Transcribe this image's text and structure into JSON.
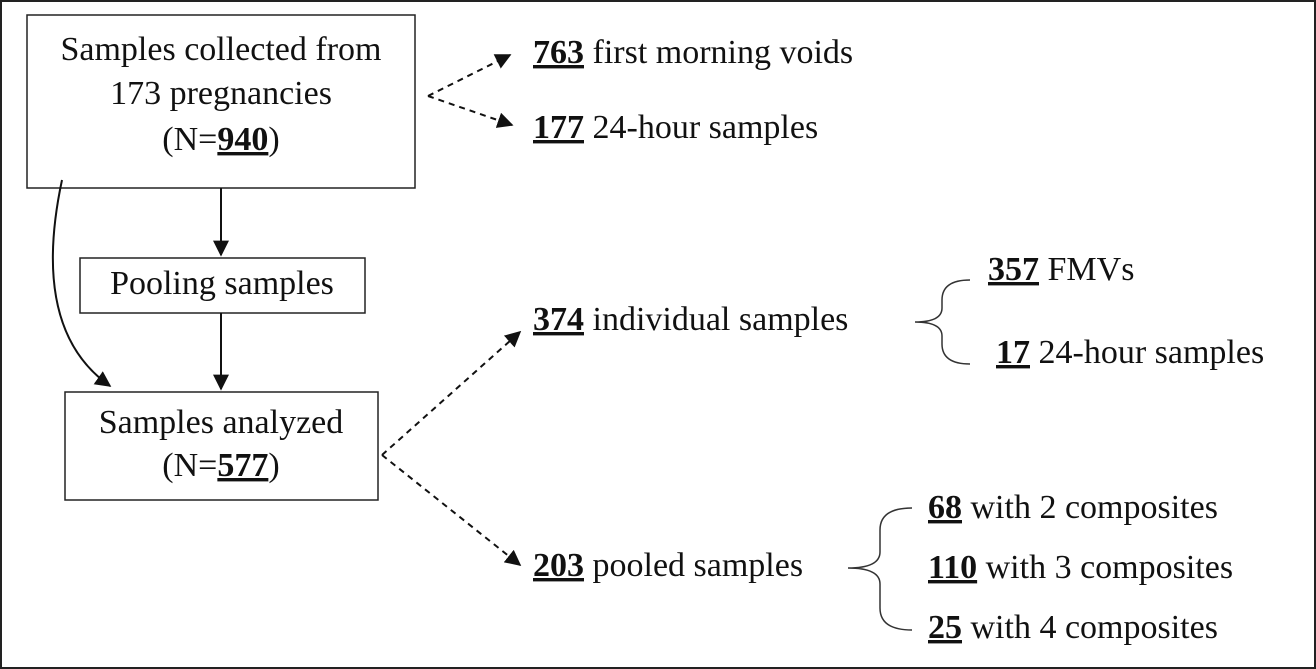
{
  "nodes": [
    {
      "lines": [
        "Samples collected from",
        "173 pregnancies"
      ],
      "prefix": "(N=",
      "count": 940,
      "suffix": ")"
    },
    {
      "label": "Pooling samples"
    },
    {
      "lines": [
        "Samples analyzed"
      ],
      "prefix": "(N=",
      "count": 577,
      "suffix": ")"
    }
  ],
  "branches": [
    {
      "count": 763,
      "label": "first morning voids"
    },
    {
      "count": 177,
      "label": "24-hour samples"
    },
    {
      "count": 374,
      "label": "individual samples"
    },
    {
      "count": 357,
      "label": "FMVs"
    },
    {
      "count": 17,
      "label": "24-hour samples"
    },
    {
      "count": 203,
      "label": "pooled samples"
    },
    {
      "count": 68,
      "label": "with 2 composites"
    },
    {
      "count": 110,
      "label": "with 3 composites"
    },
    {
      "count": 25,
      "label": "with 4 composites"
    }
  ]
}
